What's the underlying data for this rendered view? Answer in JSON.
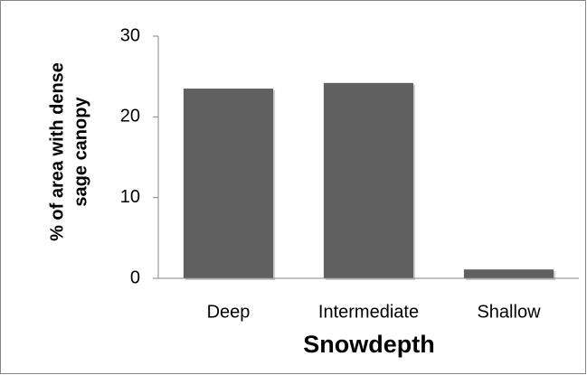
{
  "chart_data": {
    "type": "bar",
    "ylabel": [
      "% of area with dense",
      "sage canopy"
    ],
    "xlabel": "Snowdepth",
    "categories": [
      "Deep",
      "Intermediate",
      "Shallow"
    ],
    "values": [
      23.5,
      24.2,
      1.1
    ],
    "color": "#606060",
    "ylim": [
      0,
      30
    ],
    "yticks": [
      0,
      10,
      20,
      30
    ]
  }
}
